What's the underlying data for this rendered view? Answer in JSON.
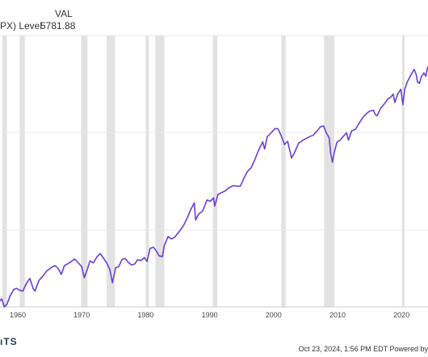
{
  "legend": {
    "header": "VAL",
    "series_label": "PX) Level",
    "series_value": "5781.88"
  },
  "footer": {
    "logo": "ıTS",
    "credit": "Oct 23, 2024, 1:56 PM EDT Powered by"
  },
  "colors": {
    "line": "#6a3fd2",
    "recession": "#e2e2e2",
    "grid": "#e9e9e9",
    "axis": "#cccccc",
    "text": "#444444"
  },
  "chart_data": {
    "type": "line",
    "scale": "log",
    "x_tick_labels": [
      "1960",
      "1970",
      "1980",
      "1990",
      "2000",
      "2010",
      "2020"
    ],
    "series": [
      {
        "name": "PX) Level",
        "points": [
          [
            1956.0,
            46
          ],
          [
            1957.0,
            44
          ],
          [
            1957.5,
            47
          ],
          [
            1957.9,
            40
          ],
          [
            1958.3,
            42
          ],
          [
            1958.8,
            50
          ],
          [
            1959.4,
            57
          ],
          [
            1959.8,
            58
          ],
          [
            1960.3,
            56
          ],
          [
            1960.8,
            55
          ],
          [
            1961.4,
            65
          ],
          [
            1961.9,
            71
          ],
          [
            1962.4,
            58
          ],
          [
            1962.7,
            55
          ],
          [
            1963.3,
            68
          ],
          [
            1963.9,
            74
          ],
          [
            1964.5,
            82
          ],
          [
            1965.2,
            88
          ],
          [
            1965.8,
            92
          ],
          [
            1966.3,
            87
          ],
          [
            1966.8,
            77
          ],
          [
            1967.3,
            92
          ],
          [
            1967.9,
            96
          ],
          [
            1968.4,
            100
          ],
          [
            1968.9,
            105
          ],
          [
            1969.4,
            98
          ],
          [
            1970.0,
            90
          ],
          [
            1970.4,
            72
          ],
          [
            1970.9,
            86
          ],
          [
            1971.3,
            101
          ],
          [
            1971.8,
            97
          ],
          [
            1972.4,
            110
          ],
          [
            1972.9,
            117
          ],
          [
            1973.4,
            107
          ],
          [
            1973.9,
            97
          ],
          [
            1974.4,
            85
          ],
          [
            1974.8,
            65
          ],
          [
            1975.3,
            88
          ],
          [
            1975.8,
            90
          ],
          [
            1976.3,
            104
          ],
          [
            1976.8,
            106
          ],
          [
            1977.3,
            98
          ],
          [
            1977.8,
            93
          ],
          [
            1978.3,
            95
          ],
          [
            1978.7,
            103
          ],
          [
            1979.3,
            102
          ],
          [
            1979.8,
            108
          ],
          [
            1980.2,
            100
          ],
          [
            1980.7,
            130
          ],
          [
            1981.2,
            133
          ],
          [
            1981.6,
            125
          ],
          [
            1982.1,
            112
          ],
          [
            1982.6,
            110
          ],
          [
            1982.9,
            137
          ],
          [
            1983.5,
            165
          ],
          [
            1984.0,
            157
          ],
          [
            1984.5,
            162
          ],
          [
            1985.2,
            181
          ],
          [
            1985.9,
            205
          ],
          [
            1986.5,
            240
          ],
          [
            1987.0,
            280
          ],
          [
            1987.6,
            325
          ],
          [
            1987.8,
            230
          ],
          [
            1988.3,
            260
          ],
          [
            1988.9,
            275
          ],
          [
            1989.6,
            345
          ],
          [
            1990.1,
            335
          ],
          [
            1990.6,
            360
          ],
          [
            1990.8,
            305
          ],
          [
            1991.3,
            385
          ],
          [
            1991.9,
            400
          ],
          [
            1992.5,
            415
          ],
          [
            1993.0,
            440
          ],
          [
            1993.7,
            460
          ],
          [
            1994.2,
            455
          ],
          [
            1994.8,
            455
          ],
          [
            1995.4,
            540
          ],
          [
            1995.9,
            610
          ],
          [
            1996.5,
            660
          ],
          [
            1997.0,
            760
          ],
          [
            1997.6,
            920
          ],
          [
            1998.3,
            1110
          ],
          [
            1998.6,
            960
          ],
          [
            1999.0,
            1230
          ],
          [
            1999.6,
            1330
          ],
          [
            2000.2,
            1450
          ],
          [
            2000.7,
            1440
          ],
          [
            2001.2,
            1250
          ],
          [
            2001.7,
            1050
          ],
          [
            2002.2,
            1120
          ],
          [
            2002.6,
            900
          ],
          [
            2002.8,
            800
          ],
          [
            2003.3,
            900
          ],
          [
            2003.9,
            1080
          ],
          [
            2004.5,
            1140
          ],
          [
            2005.0,
            1180
          ],
          [
            2005.6,
            1230
          ],
          [
            2006.2,
            1270
          ],
          [
            2006.8,
            1380
          ],
          [
            2007.3,
            1500
          ],
          [
            2007.8,
            1530
          ],
          [
            2008.2,
            1350
          ],
          [
            2008.7,
            1200
          ],
          [
            2008.9,
            900
          ],
          [
            2009.2,
            735
          ],
          [
            2009.5,
            900
          ],
          [
            2009.9,
            1100
          ],
          [
            2010.4,
            1150
          ],
          [
            2010.9,
            1240
          ],
          [
            2011.4,
            1330
          ],
          [
            2011.7,
            1150
          ],
          [
            2012.2,
            1380
          ],
          [
            2012.8,
            1430
          ],
          [
            2013.4,
            1620
          ],
          [
            2013.9,
            1800
          ],
          [
            2014.5,
            1950
          ],
          [
            2015.0,
            2060
          ],
          [
            2015.6,
            2100
          ],
          [
            2015.9,
            1920
          ],
          [
            2016.2,
            1880
          ],
          [
            2016.7,
            2170
          ],
          [
            2017.3,
            2380
          ],
          [
            2017.9,
            2650
          ],
          [
            2018.3,
            2720
          ],
          [
            2018.7,
            2900
          ],
          [
            2018.95,
            2450
          ],
          [
            2019.4,
            2900
          ],
          [
            2019.9,
            3200
          ],
          [
            2020.2,
            2350
          ],
          [
            2020.5,
            3200
          ],
          [
            2020.9,
            3700
          ],
          [
            2021.5,
            4300
          ],
          [
            2021.98,
            4770
          ],
          [
            2022.3,
            4300
          ],
          [
            2022.5,
            3700
          ],
          [
            2022.8,
            3600
          ],
          [
            2023.1,
            4100
          ],
          [
            2023.5,
            4450
          ],
          [
            2023.8,
            4150
          ],
          [
            2024.0,
            4780
          ],
          [
            2024.3,
            5250
          ],
          [
            2024.6,
            5450
          ],
          [
            2024.8,
            5782
          ]
        ]
      }
    ],
    "recessions": [
      [
        1957.6,
        1958.3
      ],
      [
        1960.3,
        1961.1
      ],
      [
        1969.9,
        1970.9
      ],
      [
        1973.9,
        1975.2
      ],
      [
        1980.0,
        1980.5
      ],
      [
        1981.5,
        1982.9
      ],
      [
        1990.5,
        1991.2
      ],
      [
        2001.2,
        2001.9
      ],
      [
        2007.9,
        2009.5
      ],
      [
        2020.1,
        2020.4
      ]
    ],
    "gridlines": true,
    "legend_position": "top-left"
  }
}
